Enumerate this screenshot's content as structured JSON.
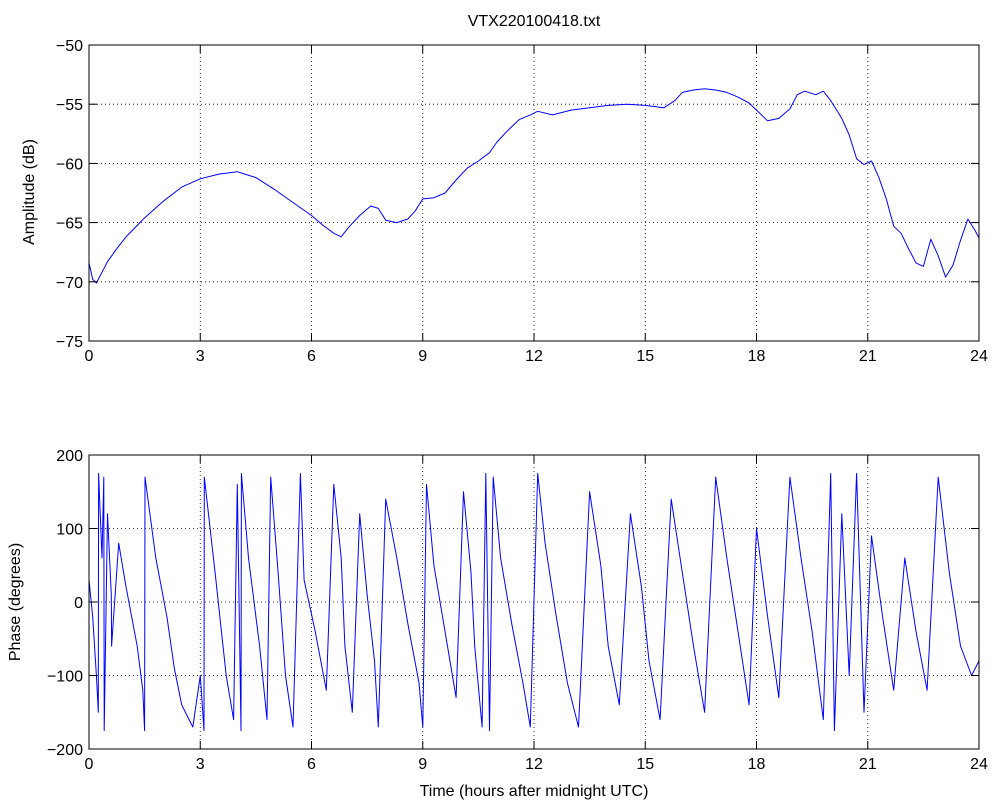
{
  "figure": {
    "background": "#ffffff",
    "line_color": "#0000ff"
  },
  "chart_data": [
    {
      "type": "line",
      "title": "VTX220100418.txt",
      "xlabel": "",
      "ylabel": "Amplitude (dB)",
      "xlim": [
        0,
        24
      ],
      "ylim": [
        -75,
        -50
      ],
      "xticks": [
        0,
        3,
        6,
        9,
        12,
        15,
        18,
        21,
        24
      ],
      "yticks": [
        -75,
        -70,
        -65,
        -60,
        -55,
        -50
      ],
      "xtick_labels": [
        "0",
        "3",
        "6",
        "9",
        "12",
        "15",
        "18",
        "21",
        "24"
      ],
      "ytick_labels": [
        "−75",
        "−70",
        "−65",
        "−60",
        "−55",
        "−50"
      ],
      "grid": true,
      "series": [
        {
          "color": "#0000ff",
          "x": [
            0,
            0.1,
            0.2,
            0.3,
            0.5,
            0.75,
            1,
            1.5,
            2,
            2.5,
            3,
            3.5,
            4,
            4.5,
            5,
            5.5,
            6,
            6.3,
            6.6,
            6.8,
            7.0,
            7.3,
            7.6,
            7.8,
            8.0,
            8.3,
            8.6,
            8.8,
            9.0,
            9.3,
            9.6,
            9.9,
            10.2,
            10.5,
            10.8,
            11.0,
            11.3,
            11.6,
            11.9,
            12.1,
            12.5,
            13.0,
            13.5,
            14.0,
            14.5,
            15.0,
            15.5,
            15.8,
            16.0,
            16.3,
            16.6,
            16.9,
            17.2,
            17.5,
            17.8,
            18.0,
            18.3,
            18.6,
            18.9,
            19.1,
            19.3,
            19.6,
            19.8,
            20.0,
            20.3,
            20.5,
            20.7,
            20.9,
            21.1,
            21.3,
            21.5,
            21.7,
            21.9,
            22.1,
            22.3,
            22.5,
            22.7,
            22.9,
            23.1,
            23.3,
            23.5,
            23.7,
            23.9,
            24.0
          ],
          "y": [
            -68.4,
            -69.8,
            -70.1,
            -69.5,
            -68.3,
            -67.2,
            -66.2,
            -64.6,
            -63.2,
            -62.0,
            -61.3,
            -60.9,
            -60.7,
            -61.2,
            -62.2,
            -63.3,
            -64.4,
            -65.2,
            -65.9,
            -66.2,
            -65.4,
            -64.4,
            -63.6,
            -63.8,
            -64.8,
            -65.0,
            -64.7,
            -64.0,
            -63.0,
            -62.9,
            -62.5,
            -61.4,
            -60.4,
            -59.8,
            -59.1,
            -58.2,
            -57.2,
            -56.3,
            -55.9,
            -55.6,
            -55.9,
            -55.5,
            -55.3,
            -55.1,
            -55.0,
            -55.1,
            -55.3,
            -54.7,
            -54.0,
            -53.8,
            -53.7,
            -53.8,
            -54.0,
            -54.4,
            -54.9,
            -55.5,
            -56.4,
            -56.2,
            -55.4,
            -54.2,
            -53.9,
            -54.2,
            -53.9,
            -54.7,
            -56.2,
            -57.6,
            -59.6,
            -60.1,
            -59.8,
            -61.2,
            -63.0,
            -65.3,
            -65.9,
            -67.2,
            -68.4,
            -68.7,
            -66.4,
            -67.8,
            -69.6,
            -68.6,
            -66.5,
            -64.7,
            -65.7,
            -66.3
          ]
        }
      ]
    },
    {
      "type": "line",
      "title": "",
      "xlabel": "Time (hours after midnight UTC)",
      "ylabel": "Phase (degrees)",
      "xlim": [
        0,
        24
      ],
      "ylim": [
        -200,
        200
      ],
      "xticks": [
        0,
        3,
        6,
        9,
        12,
        15,
        18,
        21,
        24
      ],
      "yticks": [
        -200,
        -100,
        0,
        100,
        200
      ],
      "xtick_labels": [
        "0",
        "3",
        "6",
        "9",
        "12",
        "15",
        "18",
        "21",
        "24"
      ],
      "ytick_labels": [
        "−200",
        "−100",
        "0",
        "100",
        "200"
      ],
      "grid": true,
      "series": [
        {
          "color": "#0000ff",
          "x": [
            0,
            0.1,
            0.2,
            0.25,
            0.26,
            0.35,
            0.4,
            0.41,
            0.5,
            0.6,
            0.61,
            0.8,
            1.0,
            1.3,
            1.45,
            1.5,
            1.51,
            1.8,
            2.1,
            2.3,
            2.5,
            2.8,
            3.0,
            3.1,
            3.11,
            3.4,
            3.7,
            3.9,
            4.0,
            4.1,
            4.11,
            4.3,
            4.6,
            4.8,
            4.9,
            5.1,
            5.3,
            5.5,
            5.7,
            5.8,
            6.1,
            6.4,
            6.6,
            6.8,
            6.9,
            7.1,
            7.3,
            7.5,
            7.7,
            7.8,
            8.0,
            8.3,
            8.6,
            8.9,
            9.0,
            9.1,
            9.3,
            9.6,
            9.9,
            10.1,
            10.3,
            10.4,
            10.6,
            10.7,
            10.8,
            10.9,
            11.1,
            11.4,
            11.7,
            11.9,
            12.1,
            12.3,
            12.6,
            12.9,
            13.2,
            13.5,
            13.8,
            14.0,
            14.3,
            14.6,
            14.9,
            15.1,
            15.4,
            15.7,
            16.0,
            16.3,
            16.6,
            16.9,
            17.2,
            17.5,
            17.8,
            18.0,
            18.3,
            18.6,
            18.9,
            19.2,
            19.5,
            19.8,
            20.0,
            20.1,
            20.3,
            20.5,
            20.7,
            20.9,
            21.1,
            21.4,
            21.7,
            22.0,
            22.3,
            22.6,
            22.9,
            23.2,
            23.5,
            23.8,
            24.0
          ],
          "y": [
            30,
            -20,
            -100,
            -150,
            175,
            60,
            170,
            -175,
            120,
            10,
            -60,
            80,
            20,
            -60,
            -120,
            -175,
            170,
            60,
            -20,
            -90,
            -140,
            -170,
            -100,
            -175,
            170,
            40,
            -100,
            -160,
            160,
            -175,
            175,
            60,
            -60,
            -160,
            170,
            40,
            -100,
            -170,
            175,
            30,
            -40,
            -120,
            160,
            60,
            -60,
            -150,
            120,
            10,
            -80,
            -170,
            140,
            60,
            -30,
            -110,
            -170,
            160,
            50,
            -40,
            -130,
            150,
            40,
            -60,
            -170,
            175,
            -175,
            170,
            60,
            -30,
            -110,
            -170,
            175,
            80,
            -20,
            -110,
            -170,
            150,
            50,
            -60,
            -140,
            120,
            20,
            -80,
            -160,
            140,
            40,
            -60,
            -150,
            170,
            60,
            -40,
            -140,
            100,
            -20,
            -130,
            170,
            60,
            -40,
            -160,
            175,
            -175,
            120,
            -100,
            175,
            -150,
            90,
            -20,
            -120,
            60,
            -40,
            -120,
            170,
            40,
            -60,
            -100,
            -80
          ]
        }
      ]
    }
  ]
}
